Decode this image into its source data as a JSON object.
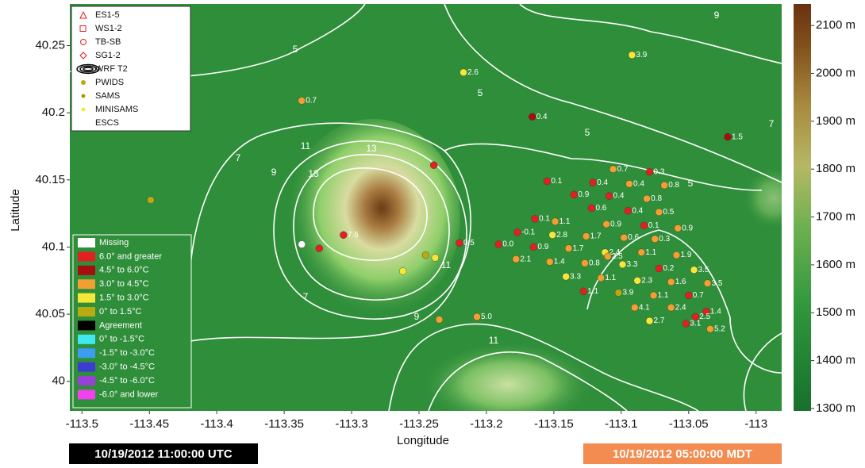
{
  "map": {
    "xlabel": "Longitude",
    "ylabel": "Latitude",
    "xlim": [
      -113.509,
      -112.981
    ],
    "ylim": [
      39.978,
      40.281
    ],
    "xticks": [
      -113.5,
      -113.45,
      -113.4,
      -113.35,
      -113.3,
      -113.25,
      -113.2,
      -113.15,
      -113.1,
      -113.05,
      -113
    ],
    "yticks": [
      40,
      40.05,
      40.1,
      40.15,
      40.2,
      40.25
    ],
    "colorbar": {
      "lim": [
        1295,
        2145
      ],
      "ticks": [
        {
          "value": 1300,
          "label": "1300 m"
        },
        {
          "value": 1400,
          "label": "1400 m"
        },
        {
          "value": 1500,
          "label": "1500 m"
        },
        {
          "value": 1600,
          "label": "1600 m"
        },
        {
          "value": 1700,
          "label": "1700 m"
        },
        {
          "value": 1800,
          "label": "1800 m"
        },
        {
          "value": 1900,
          "label": "1900 m"
        },
        {
          "value": 2000,
          "label": "2000 m"
        },
        {
          "value": 2100,
          "label": "2100 m"
        }
      ]
    },
    "legend": {
      "labels": [
        "ES1-5",
        "WS1-2",
        "TB-SB",
        "SG1-2",
        "WRF T2",
        "PWIDS",
        "SAMS",
        "MINISAMS",
        "ESCS"
      ]
    },
    "temperature_legend": {
      "labels": [
        "Missing",
        "6.0° and greater",
        "4.5° to 6.0°C",
        "3.0° to 4.5°C",
        "1.5° to 3.0°C",
        "0° to 1.5°C",
        "Agreement",
        "0° to -1.5°C",
        "-1.5° to -3.0°C",
        "-3.0° to -4.5°C",
        "-4.5° to -6.0°C",
        "-6.0° and lower"
      ],
      "colors": [
        "#ffffff",
        "#e32020",
        "#a80e0e",
        "#f0a030",
        "#f5e63a",
        "#b8aa10",
        "#000000",
        "#40e8f0",
        "#3c9cf0",
        "#3c3cd0",
        "#9a40d8",
        "#f040f0"
      ]
    },
    "contour_labels": [
      9,
      5,
      5,
      5,
      7,
      9,
      11,
      13,
      13,
      11,
      9,
      7,
      11,
      5,
      7
    ],
    "stations": {
      "lon": [
        -113.337,
        -113.217,
        -113.092,
        -113.166,
        -113.021,
        -113.449,
        -113.239,
        -113.337,
        -113.306,
        -113.324,
        -113.155,
        -113.135,
        -113.106,
        -113.079,
        -113.121,
        -113.094,
        -113.068,
        -113.109,
        -113.081,
        -113.122,
        -113.164,
        -113.149,
        -113.095,
        -113.072,
        -113.111,
        -113.177,
        -113.151,
        -113.126,
        -113.098,
        -113.083,
        -113.058,
        -113.075,
        -113.191,
        -113.165,
        -113.139,
        -113.22,
        -113.112,
        -113.085,
        -113.059,
        -113.178,
        -113.153,
        -113.127,
        -113.11,
        -113.099,
        -113.072,
        -113.046,
        -113.141,
        -113.115,
        -113.088,
        -113.063,
        -113.036,
        -113.128,
        -113.102,
        -113.076,
        -113.05,
        -113.09,
        -113.063,
        -113.037,
        -113.045,
        -113.052,
        -113.079,
        -113.034,
        -113.207,
        -113.235,
        -113.262,
        -113.238,
        -113.245
      ],
      "lat": [
        40.209,
        40.23,
        40.243,
        40.197,
        40.182,
        40.135,
        40.161,
        40.102,
        40.109,
        40.099,
        40.149,
        40.139,
        40.158,
        40.156,
        40.148,
        40.147,
        40.146,
        40.138,
        40.136,
        40.129,
        40.121,
        40.119,
        40.127,
        40.126,
        40.117,
        40.111,
        40.109,
        40.108,
        40.107,
        40.116,
        40.114,
        40.106,
        40.102,
        40.1,
        40.099,
        40.103,
        40.096,
        40.096,
        40.094,
        40.091,
        40.089,
        40.088,
        40.093,
        40.087,
        40.084,
        40.083,
        40.078,
        40.077,
        40.075,
        40.074,
        40.073,
        40.067,
        40.066,
        40.064,
        40.064,
        40.055,
        40.055,
        40.052,
        40.048,
        40.043,
        40.045,
        40.039,
        40.048,
        40.046,
        40.082,
        40.092,
        40.094
      ],
      "labels": [
        "0.7",
        "2.6",
        "3.9",
        "0.4",
        "1.5",
        null,
        null,
        null,
        "7.6",
        null,
        "0.1",
        "0.9",
        "0.7",
        "0.3",
        "0.4",
        "0.4",
        "0.8",
        "0.4",
        "0.8",
        "0.6",
        "0.1",
        "1.1",
        "0.4",
        "0.5",
        "0.9",
        "-0.1",
        "2.8",
        "1.7",
        "0.6",
        "0.1",
        "0.9",
        "0.3",
        "0.0",
        "0.9",
        "1.7",
        "0.5",
        "2.4",
        "1.1",
        "1.9",
        "2.1",
        "1.4",
        "0.8",
        "2.5",
        "3.3",
        "0.2",
        "3.5",
        "3.3",
        "1.1",
        "2.3",
        "1.6",
        "3.5",
        "1.1",
        "3.9",
        "1.1",
        "0.7",
        "4.1",
        "2.4",
        "1.4",
        "2.5",
        "3.1",
        "2.7",
        "5.2",
        "5.0",
        null,
        null,
        null,
        null
      ],
      "colors": [
        "#f0a030",
        "#f5e63a",
        "#f5e63a",
        "#a80e0e",
        "#a80e0e",
        "#b8aa10",
        "#e32020",
        "#ffffff",
        "#e32020",
        "#e32020",
        "#e32020",
        "#e32020",
        "#f0a030",
        "#e32020",
        "#e32020",
        "#f0a030",
        "#f0a030",
        "#e32020",
        "#f0a030",
        "#e32020",
        "#e32020",
        "#f0a030",
        "#e32020",
        "#f0a030",
        "#f0a030",
        "#e32020",
        "#f5e63a",
        "#f0a030",
        "#f0a030",
        "#e32020",
        "#f0a030",
        "#f0a030",
        "#e32020",
        "#e32020",
        "#f0a030",
        "#e32020",
        "#f5e63a",
        "#f0a030",
        "#f0a030",
        "#f0a030",
        "#f0a030",
        "#f0a030",
        "#f0a030",
        "#f5e63a",
        "#e32020",
        "#f5e63a",
        "#f5e63a",
        "#f0a030",
        "#f5e63a",
        "#f0a030",
        "#f0a030",
        "#e32020",
        "#b8aa10",
        "#f0a030",
        "#e32020",
        "#f0a030",
        "#f0a030",
        "#e32020",
        "#e32020",
        "#e32020",
        "#f5e63a",
        "#f0a030",
        "#f0a030",
        "#f0a030",
        "#f5e63a",
        "#f5e63a",
        "#b8aa10"
      ]
    },
    "timestamps": {
      "utc": "10/19/2012 11:00:00 UTC",
      "local": "10/19/2012 05:00:00 MDT"
    }
  }
}
